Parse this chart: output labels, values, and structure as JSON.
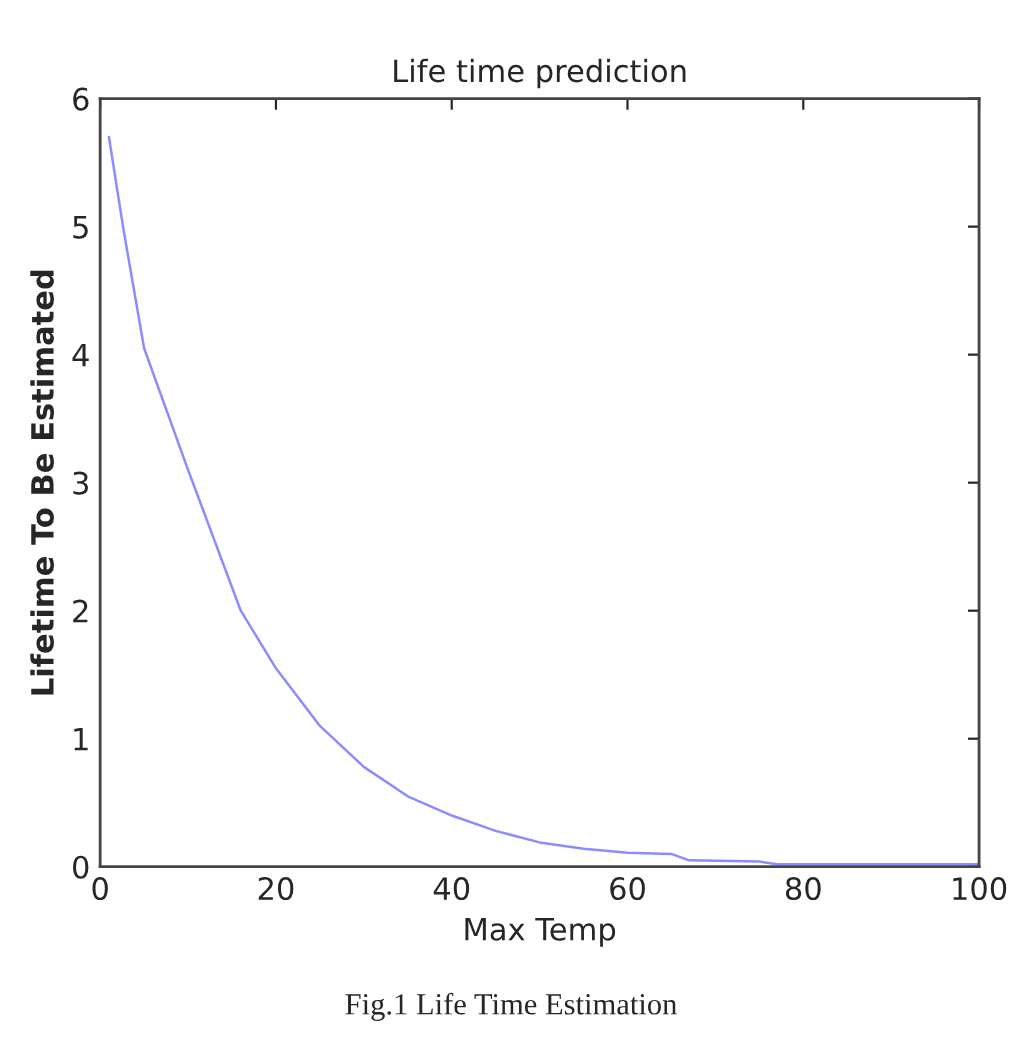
{
  "chart_data": {
    "type": "line",
    "title": "Life time prediction",
    "xlabel": "Max Temp",
    "ylabel": "Lifetime To Be Estimated",
    "annotations": [
      "Fig.1 Life Time Estimation"
    ],
    "series": [
      {
        "color": "#8c8cff",
        "x": [
          1,
          2.6,
          5,
          10,
          16,
          20,
          25,
          30,
          35,
          40,
          45,
          50,
          55,
          60,
          65,
          67,
          75,
          77,
          100
        ],
        "values": [
          5.7,
          5,
          4.05,
          3.1,
          2,
          1.55,
          1.1,
          0.78,
          0.55,
          0.4,
          0.28,
          0.19,
          0.14,
          0.11,
          0.1,
          0.05,
          0.04,
          0.02,
          0.02
        ]
      }
    ],
    "xlim": [
      0,
      100
    ],
    "ylim": [
      0,
      6
    ],
    "xticks": [
      0,
      20,
      40,
      60,
      80,
      100
    ],
    "yticks": [
      0,
      1,
      2,
      3,
      4,
      5,
      6
    ],
    "grid": false,
    "legend": false,
    "line_style": "solid",
    "marker": "none"
  }
}
